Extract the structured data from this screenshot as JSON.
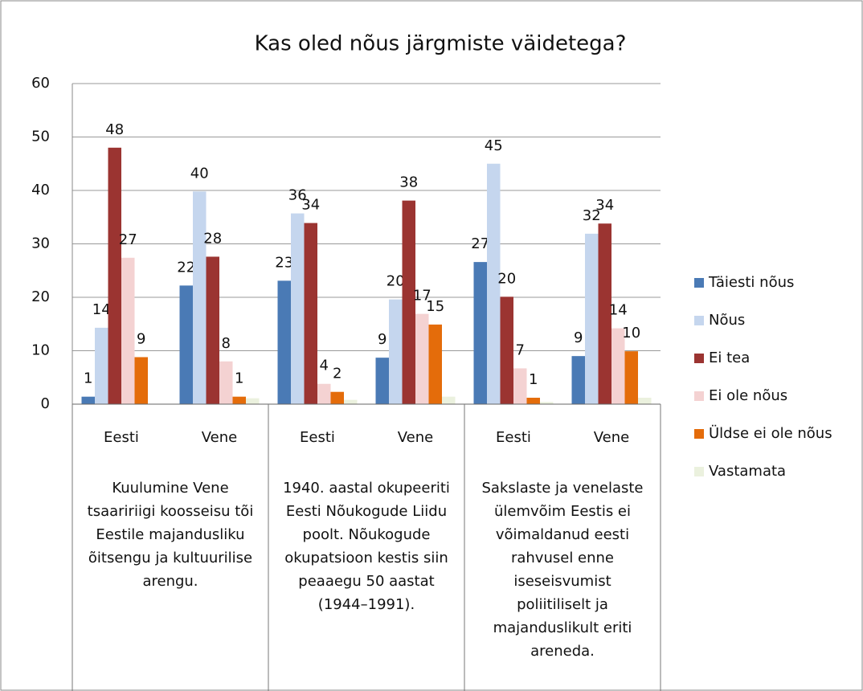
{
  "chart_data": {
    "type": "bar",
    "title": "Kas oled nõus järgmiste väidetega?",
    "categories": [
      "Eesti",
      "Vene",
      "Eesti",
      "Vene",
      "Eesti",
      "Vene"
    ],
    "groups": [
      {
        "label_lines": [
          "Kuulumine Vene",
          "tsaaririigi koosseisu tõi",
          "Eestile majandusliku",
          "õitsengu ja kultuurilise",
          "arengu."
        ]
      },
      {
        "label_lines": [
          "1940. aastal okupeeriti",
          "Eesti Nõukogude Liidu",
          "poolt. Nõukogude",
          "okupatsioon kestis siin",
          "peaaegu 50 aastat",
          "(1944–1991)."
        ]
      },
      {
        "label_lines": [
          "Sakslaste ja venelaste",
          "ülemvõim Eestis ei",
          "võimaldanud eesti",
          "rahvusel enne",
          "iseseisvumist",
          "poliitiliselt ja",
          "majanduslikult eriti",
          "areneda."
        ]
      }
    ],
    "series": [
      {
        "name": "Täiesti nõus",
        "color": "#4a7ab5",
        "values": [
          1.4,
          22.2,
          23.1,
          8.7,
          26.6,
          9.0
        ],
        "value_labels": [
          "1",
          "22",
          "23",
          "9",
          "27",
          "9"
        ]
      },
      {
        "name": "Nõus",
        "color": "#c5d6ee",
        "values": [
          14.3,
          39.8,
          35.7,
          19.6,
          45,
          31.9
        ],
        "value_labels": [
          "14",
          "40",
          "36",
          "20",
          "45",
          "32"
        ]
      },
      {
        "name": "Ei tea",
        "color": "#9b3431",
        "values": [
          48,
          27.6,
          33.9,
          38.1,
          20.1,
          33.8
        ],
        "value_labels": [
          "48",
          "28",
          "34",
          "38",
          "20",
          "34"
        ]
      },
      {
        "name": "Ei ole nõus",
        "color": "#f4d2d2",
        "values": [
          27.4,
          8,
          3.8,
          16.9,
          6.7,
          14.2
        ],
        "value_labels": [
          "27",
          "8",
          "4",
          "17",
          "7",
          "14"
        ]
      },
      {
        "name": "Üldse ei ole nõus",
        "color": "#e46c0a",
        "values": [
          8.8,
          1.4,
          2.3,
          14.9,
          1.2,
          9.9
        ],
        "value_labels": [
          "9",
          "1",
          "2",
          "15",
          "1",
          "10"
        ]
      },
      {
        "name": "Vastamata",
        "color": "#ebf1de",
        "values": [
          0,
          1.1,
          0.8,
          1.4,
          0.4,
          1.2
        ]
      }
    ],
    "ylim": [
      0,
      60
    ],
    "yticks": [
      0,
      10,
      20,
      30,
      40,
      50,
      60
    ],
    "grid": true,
    "legend": "right"
  }
}
